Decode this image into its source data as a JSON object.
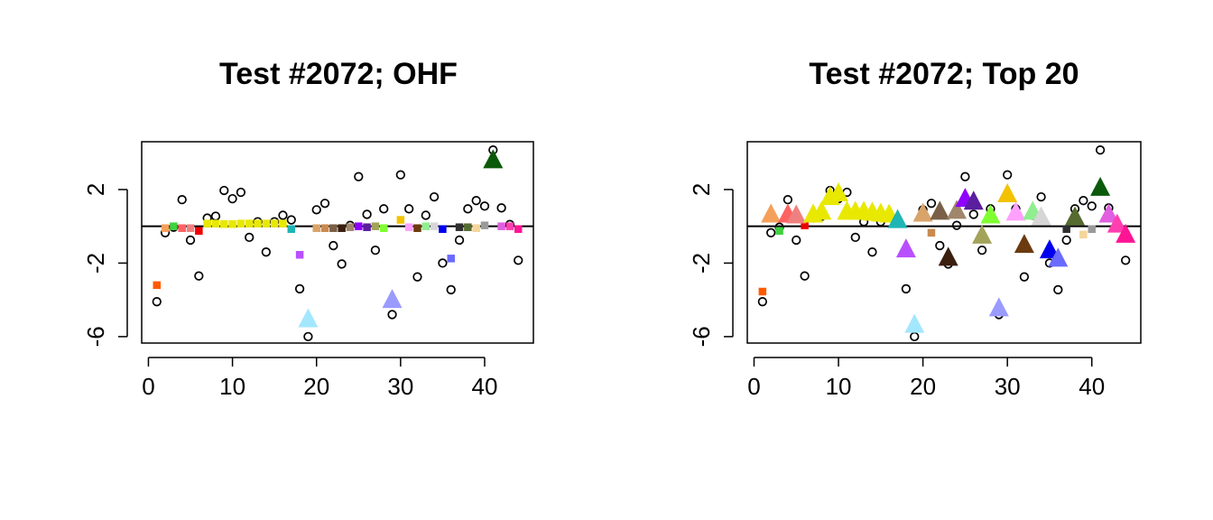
{
  "chart_data": [
    {
      "type": "scatter",
      "title": "Test #2072; OHF",
      "xlabel": "",
      "ylabel": "",
      "xlim": [
        -0.8,
        45.8
      ],
      "ylim": [
        -6.35,
        4.6
      ],
      "xticks": [
        0,
        10,
        20,
        30,
        40
      ],
      "yticks": [
        -6,
        -2,
        2
      ],
      "hline": 0,
      "background_points": [
        {
          "x": 1,
          "y": -4.1
        },
        {
          "x": 2,
          "y": -0.35
        },
        {
          "x": 3,
          "y": -0.05
        },
        {
          "x": 4,
          "y": 1.45
        },
        {
          "x": 5,
          "y": -0.75
        },
        {
          "x": 6,
          "y": -2.7
        },
        {
          "x": 7,
          "y": 0.45
        },
        {
          "x": 8,
          "y": 0.55
        },
        {
          "x": 9,
          "y": 1.95
        },
        {
          "x": 10,
          "y": 1.5
        },
        {
          "x": 11,
          "y": 1.85
        },
        {
          "x": 12,
          "y": -0.6
        },
        {
          "x": 13,
          "y": 0.25
        },
        {
          "x": 14,
          "y": -1.4
        },
        {
          "x": 15,
          "y": 0.25
        },
        {
          "x": 16,
          "y": 0.6
        },
        {
          "x": 17,
          "y": 0.35
        },
        {
          "x": 18,
          "y": -3.4
        },
        {
          "x": 19,
          "y": -6.0
        },
        {
          "x": 20,
          "y": 0.9
        },
        {
          "x": 21,
          "y": 1.25
        },
        {
          "x": 22,
          "y": -1.05
        },
        {
          "x": 23,
          "y": -2.05
        },
        {
          "x": 24,
          "y": 0.05
        },
        {
          "x": 25,
          "y": 2.7
        },
        {
          "x": 26,
          "y": 0.65
        },
        {
          "x": 27,
          "y": -1.3
        },
        {
          "x": 28,
          "y": 0.95
        },
        {
          "x": 29,
          "y": -4.8
        },
        {
          "x": 30,
          "y": 2.8
        },
        {
          "x": 31,
          "y": 0.95
        },
        {
          "x": 32,
          "y": -2.75
        },
        {
          "x": 33,
          "y": 0.6
        },
        {
          "x": 34,
          "y": 1.6
        },
        {
          "x": 35,
          "y": -2.0
        },
        {
          "x": 36,
          "y": -3.45
        },
        {
          "x": 37,
          "y": -0.75
        },
        {
          "x": 38,
          "y": 0.95
        },
        {
          "x": 39,
          "y": 1.4
        },
        {
          "x": 40,
          "y": 1.1
        },
        {
          "x": 41,
          "y": 4.15
        },
        {
          "x": 42,
          "y": 1.0
        },
        {
          "x": 43,
          "y": 0.1
        },
        {
          "x": 44,
          "y": -1.85
        }
      ],
      "squares": [
        {
          "x": 1,
          "y": -3.2,
          "color": "#ff5a00"
        },
        {
          "x": 2,
          "y": -0.1,
          "color": "#f5a05a"
        },
        {
          "x": 3,
          "y": 0.0,
          "color": "#3fd13f"
        },
        {
          "x": 4,
          "y": -0.1,
          "color": "#ff6262"
        },
        {
          "x": 5,
          "y": -0.1,
          "color": "#f08080"
        },
        {
          "x": 6,
          "y": -0.25,
          "color": "#ee0000"
        },
        {
          "x": 7,
          "y": 0.15,
          "color": "#e8e800"
        },
        {
          "x": 8,
          "y": 0.15,
          "color": "#e8e800"
        },
        {
          "x": 9,
          "y": 0.12,
          "color": "#e8e800"
        },
        {
          "x": 10,
          "y": 0.12,
          "color": "#e8e800"
        },
        {
          "x": 11,
          "y": 0.15,
          "color": "#e8e800"
        },
        {
          "x": 12,
          "y": 0.15,
          "color": "#e8e800"
        },
        {
          "x": 13,
          "y": 0.15,
          "color": "#e8e800"
        },
        {
          "x": 14,
          "y": 0.15,
          "color": "#e8e800"
        },
        {
          "x": 15,
          "y": 0.15,
          "color": "#e8e800"
        },
        {
          "x": 16,
          "y": 0.15,
          "color": "#e8e800"
        },
        {
          "x": 17,
          "y": -0.15,
          "color": "#1fb5b5"
        },
        {
          "x": 18,
          "y": -1.55,
          "color": "#b84fff"
        },
        {
          "x": 20,
          "y": -0.1,
          "color": "#d9a46a"
        },
        {
          "x": 21,
          "y": -0.1,
          "color": "#c98a50"
        },
        {
          "x": 22,
          "y": -0.1,
          "color": "#7a6048"
        },
        {
          "x": 23,
          "y": -0.1,
          "color": "#3b1f0f"
        },
        {
          "x": 24,
          "y": -0.05,
          "color": "#a0866b"
        },
        {
          "x": 25,
          "y": 0.0,
          "color": "#8f00ff"
        },
        {
          "x": 26,
          "y": -0.05,
          "color": "#5a1e9e"
        },
        {
          "x": 27,
          "y": 0.0,
          "color": "#a3a35a"
        },
        {
          "x": 28,
          "y": -0.1,
          "color": "#7fff32"
        },
        {
          "x": 30,
          "y": 0.35,
          "color": "#f2c200"
        },
        {
          "x": 31,
          "y": -0.05,
          "color": "#ffa0ff"
        },
        {
          "x": 32,
          "y": -0.1,
          "color": "#6b3a0f"
        },
        {
          "x": 33,
          "y": 0.0,
          "color": "#90ee90"
        },
        {
          "x": 34,
          "y": 0.0,
          "color": "#d6d6d6"
        },
        {
          "x": 35,
          "y": -0.15,
          "color": "#0000ee"
        },
        {
          "x": 36,
          "y": -1.75,
          "color": "#6a6aff"
        },
        {
          "x": 37,
          "y": -0.05,
          "color": "#2f2f2f"
        },
        {
          "x": 38,
          "y": -0.05,
          "color": "#556b2f"
        },
        {
          "x": 39,
          "y": -0.1,
          "color": "#f5d59a"
        },
        {
          "x": 40,
          "y": 0.05,
          "color": "#9a9a9a"
        },
        {
          "x": 42,
          "y": 0.0,
          "color": "#e060e0"
        },
        {
          "x": 43,
          "y": 0.0,
          "color": "#ff3fb0"
        },
        {
          "x": 44,
          "y": -0.15,
          "color": "#ff1493"
        }
      ],
      "triangles": [
        {
          "x": 19,
          "y": -5.1,
          "color": "#a3e7ff"
        },
        {
          "x": 29,
          "y": -4.05,
          "color": "#9a9aff"
        },
        {
          "x": 41,
          "y": 3.55,
          "color": "#0b5a0b"
        }
      ]
    },
    {
      "type": "scatter",
      "title": "Test #2072; Top 20",
      "xlabel": "",
      "ylabel": "",
      "xlim": [
        -0.8,
        45.8
      ],
      "ylim": [
        -6.35,
        4.6
      ],
      "xticks": [
        0,
        10,
        20,
        30,
        40
      ],
      "yticks": [
        -6,
        -2,
        2
      ],
      "hline": 0,
      "background_points": [
        {
          "x": 1,
          "y": -4.1
        },
        {
          "x": 2,
          "y": -0.35
        },
        {
          "x": 3,
          "y": -0.05
        },
        {
          "x": 4,
          "y": 1.45
        },
        {
          "x": 5,
          "y": -0.75
        },
        {
          "x": 6,
          "y": -2.7
        },
        {
          "x": 7,
          "y": 0.45
        },
        {
          "x": 8,
          "y": 0.55
        },
        {
          "x": 9,
          "y": 1.95
        },
        {
          "x": 10,
          "y": 1.5
        },
        {
          "x": 11,
          "y": 1.85
        },
        {
          "x": 12,
          "y": -0.6
        },
        {
          "x": 13,
          "y": 0.25
        },
        {
          "x": 14,
          "y": -1.4
        },
        {
          "x": 15,
          "y": 0.25
        },
        {
          "x": 16,
          "y": 0.6
        },
        {
          "x": 17,
          "y": 0.35
        },
        {
          "x": 18,
          "y": -3.4
        },
        {
          "x": 19,
          "y": -6.0
        },
        {
          "x": 20,
          "y": 0.9
        },
        {
          "x": 21,
          "y": 1.25
        },
        {
          "x": 22,
          "y": -1.05
        },
        {
          "x": 23,
          "y": -2.05
        },
        {
          "x": 24,
          "y": 0.05
        },
        {
          "x": 25,
          "y": 2.7
        },
        {
          "x": 26,
          "y": 0.65
        },
        {
          "x": 27,
          "y": -1.3
        },
        {
          "x": 28,
          "y": 0.95
        },
        {
          "x": 29,
          "y": -4.8
        },
        {
          "x": 30,
          "y": 2.8
        },
        {
          "x": 31,
          "y": 0.95
        },
        {
          "x": 32,
          "y": -2.75
        },
        {
          "x": 33,
          "y": 0.6
        },
        {
          "x": 34,
          "y": 1.6
        },
        {
          "x": 35,
          "y": -2.0
        },
        {
          "x": 36,
          "y": -3.45
        },
        {
          "x": 37,
          "y": -0.75
        },
        {
          "x": 38,
          "y": 0.95
        },
        {
          "x": 39,
          "y": 1.4
        },
        {
          "x": 40,
          "y": 1.1
        },
        {
          "x": 41,
          "y": 4.15
        },
        {
          "x": 42,
          "y": 1.0
        },
        {
          "x": 43,
          "y": 0.1
        },
        {
          "x": 44,
          "y": -1.85
        }
      ],
      "squares": [
        {
          "x": 1,
          "y": -3.55,
          "color": "#ff5a00"
        },
        {
          "x": 3,
          "y": -0.25,
          "color": "#3fd13f"
        },
        {
          "x": 6,
          "y": 0.05,
          "color": "#ee0000"
        },
        {
          "x": 21,
          "y": -0.35,
          "color": "#c98a50"
        },
        {
          "x": 37,
          "y": -0.15,
          "color": "#2f2f2f"
        },
        {
          "x": 39,
          "y": -0.45,
          "color": "#f5d59a"
        },
        {
          "x": 40,
          "y": -0.15,
          "color": "#9a9a9a"
        }
      ],
      "triangles": [
        {
          "x": 2,
          "y": 0.6,
          "color": "#f5a05a"
        },
        {
          "x": 4,
          "y": 0.6,
          "color": "#ff6262"
        },
        {
          "x": 5,
          "y": 0.55,
          "color": "#f08080"
        },
        {
          "x": 7,
          "y": 0.6,
          "color": "#e8e800"
        },
        {
          "x": 8,
          "y": 0.75,
          "color": "#e8e800"
        },
        {
          "x": 9,
          "y": 1.55,
          "color": "#e8e800"
        },
        {
          "x": 10,
          "y": 1.75,
          "color": "#e8e800"
        },
        {
          "x": 11,
          "y": 0.75,
          "color": "#e8e800"
        },
        {
          "x": 12,
          "y": 0.75,
          "color": "#e8e800"
        },
        {
          "x": 13,
          "y": 0.75,
          "color": "#e8e800"
        },
        {
          "x": 14,
          "y": 0.7,
          "color": "#e8e800"
        },
        {
          "x": 15,
          "y": 0.65,
          "color": "#e8e800"
        },
        {
          "x": 16,
          "y": 0.6,
          "color": "#e8e800"
        },
        {
          "x": 17,
          "y": 0.3,
          "color": "#1fb5b5"
        },
        {
          "x": 18,
          "y": -1.3,
          "color": "#b84fff"
        },
        {
          "x": 19,
          "y": -5.4,
          "color": "#a3e7ff"
        },
        {
          "x": 20,
          "y": 0.65,
          "color": "#d9a46a"
        },
        {
          "x": 22,
          "y": 0.75,
          "color": "#7a6048"
        },
        {
          "x": 23,
          "y": -1.75,
          "color": "#3b1f0f"
        },
        {
          "x": 24,
          "y": 0.8,
          "color": "#a0866b"
        },
        {
          "x": 25,
          "y": 1.45,
          "color": "#8f00ff"
        },
        {
          "x": 26,
          "y": 1.3,
          "color": "#5a1e9e"
        },
        {
          "x": 27,
          "y": -0.55,
          "color": "#a3a35a"
        },
        {
          "x": 28,
          "y": 0.55,
          "color": "#7fff32"
        },
        {
          "x": 29,
          "y": -4.5,
          "color": "#9a9aff"
        },
        {
          "x": 30,
          "y": 1.7,
          "color": "#f2c200"
        },
        {
          "x": 31,
          "y": 0.7,
          "color": "#ffa0ff"
        },
        {
          "x": 32,
          "y": -1.05,
          "color": "#6b3a0f"
        },
        {
          "x": 33,
          "y": 0.75,
          "color": "#90ee90"
        },
        {
          "x": 34,
          "y": 0.45,
          "color": "#d6d6d6"
        },
        {
          "x": 35,
          "y": -1.35,
          "color": "#0000ee"
        },
        {
          "x": 36,
          "y": -1.8,
          "color": "#6a6aff"
        },
        {
          "x": 38,
          "y": 0.45,
          "color": "#556b2f"
        },
        {
          "x": 41,
          "y": 2.05,
          "color": "#0b5a0b"
        },
        {
          "x": 42,
          "y": 0.6,
          "color": "#e060e0"
        },
        {
          "x": 43,
          "y": 0.05,
          "color": "#ff3fb0"
        },
        {
          "x": 44,
          "y": -0.5,
          "color": "#ff1493"
        }
      ]
    }
  ]
}
